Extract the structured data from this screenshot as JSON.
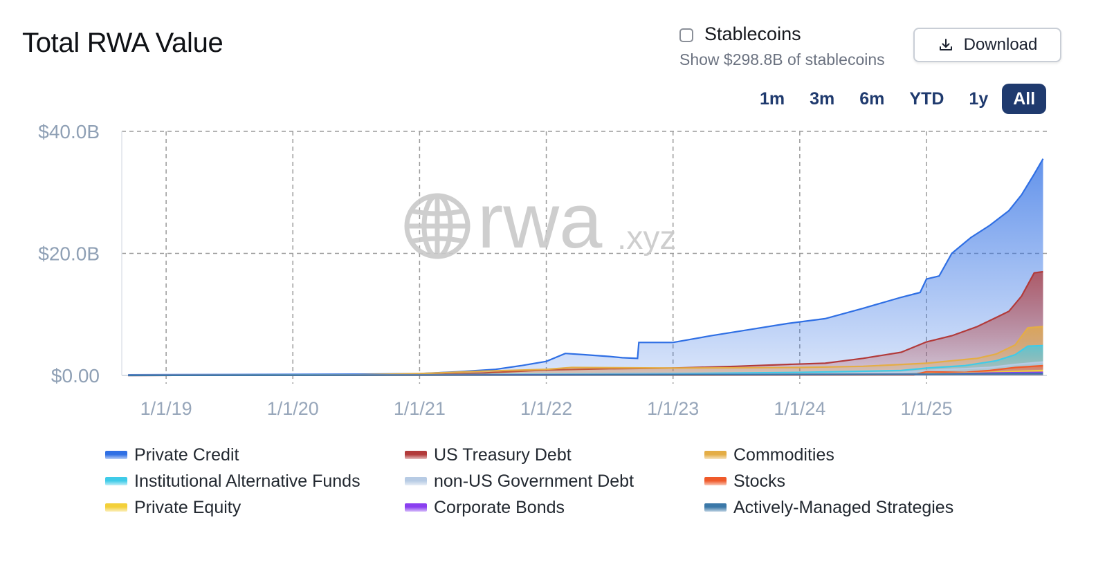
{
  "header": {
    "title": "Total RWA Value",
    "stablecoins_label": "Stablecoins",
    "stablecoins_sub": "Show $298.8B of stablecoins",
    "stablecoins_checked": false,
    "download_label": "Download"
  },
  "ranges": [
    {
      "label": "1m",
      "active": false
    },
    {
      "label": "3m",
      "active": false
    },
    {
      "label": "6m",
      "active": false
    },
    {
      "label": "YTD",
      "active": false
    },
    {
      "label": "1y",
      "active": false
    },
    {
      "label": "All",
      "active": true
    }
  ],
  "watermark": {
    "main": "rwa",
    "suffix": ".xyz",
    "icon": "globe-icon"
  },
  "chart_data": {
    "type": "area",
    "stacked": false,
    "ylim": [
      0,
      40
    ],
    "y_ticks": [
      {
        "value": 0,
        "label": "$0.00"
      },
      {
        "value": 20,
        "label": "$20.0B"
      },
      {
        "value": 40,
        "label": "$40.0B"
      }
    ],
    "x_ticks": [
      {
        "value": 2019.0,
        "label": "1/1/19"
      },
      {
        "value": 2020.0,
        "label": "1/1/20"
      },
      {
        "value": 2021.0,
        "label": "1/1/21"
      },
      {
        "value": 2022.0,
        "label": "1/1/22"
      },
      {
        "value": 2023.0,
        "label": "1/1/23"
      },
      {
        "value": 2024.0,
        "label": "1/1/24"
      },
      {
        "value": 2025.0,
        "label": "1/1/25"
      }
    ],
    "xlim": [
      2018.65,
      2025.95
    ],
    "grid": true,
    "legend_position": "bottom",
    "series": [
      {
        "name": "Private Credit",
        "color": "#2f6fe4",
        "x": [
          2018.7,
          2019.5,
          2020.5,
          2021.0,
          2021.3,
          2021.6,
          2021.8,
          2022.0,
          2022.15,
          2022.3,
          2022.5,
          2022.6,
          2022.72,
          2022.73,
          2023.0,
          2023.3,
          2023.6,
          2023.9,
          2024.2,
          2024.5,
          2024.8,
          2024.95,
          2025.0,
          2025.1,
          2025.2,
          2025.35,
          2025.5,
          2025.65,
          2025.75,
          2025.85,
          2025.92
        ],
        "values": [
          0.1,
          0.15,
          0.2,
          0.3,
          0.6,
          1.0,
          1.6,
          2.3,
          3.6,
          3.4,
          3.1,
          2.9,
          2.8,
          5.4,
          5.4,
          6.5,
          7.5,
          8.5,
          9.3,
          11.0,
          12.8,
          13.6,
          15.8,
          16.3,
          20.0,
          22.6,
          24.6,
          27.0,
          29.6,
          33.0,
          35.5
        ]
      },
      {
        "name": "US Treasury Debt",
        "color": "#b23a3a",
        "x": [
          2018.7,
          2020.5,
          2021.0,
          2021.5,
          2022.0,
          2022.5,
          2023.0,
          2023.5,
          2023.9,
          2024.2,
          2024.5,
          2024.8,
          2025.0,
          2025.2,
          2025.4,
          2025.55,
          2025.65,
          2025.75,
          2025.85,
          2025.92
        ],
        "values": [
          0.02,
          0.05,
          0.1,
          0.4,
          0.9,
          1.1,
          1.2,
          1.5,
          1.8,
          2.0,
          2.8,
          3.8,
          5.5,
          6.5,
          8.0,
          9.5,
          10.5,
          13.0,
          16.8,
          17.0
        ]
      },
      {
        "name": "Commodities",
        "color": "#e4ad45",
        "x": [
          2018.7,
          2020.5,
          2021.0,
          2021.5,
          2022.0,
          2022.2,
          2023.0,
          2024.0,
          2024.5,
          2025.0,
          2025.2,
          2025.4,
          2025.55,
          2025.7,
          2025.8,
          2025.92
        ],
        "values": [
          0.05,
          0.1,
          0.3,
          0.7,
          1.0,
          1.3,
          1.2,
          1.3,
          1.5,
          2.0,
          2.4,
          2.8,
          3.5,
          5.0,
          7.8,
          8.0
        ]
      },
      {
        "name": "Institutional Alternative Funds",
        "color": "#3fcbe8",
        "x": [
          2018.7,
          2021.0,
          2022.0,
          2023.0,
          2024.0,
          2024.8,
          2025.0,
          2025.3,
          2025.55,
          2025.7,
          2025.8,
          2025.92
        ],
        "values": [
          0.05,
          0.1,
          0.2,
          0.3,
          0.5,
          0.8,
          1.2,
          1.6,
          2.4,
          3.4,
          4.8,
          4.9
        ]
      },
      {
        "name": "non-US Government Debt",
        "color": "#b7cbe4",
        "x": [
          2018.7,
          2024.0,
          2024.8,
          2025.0,
          2025.5,
          2025.7,
          2025.92
        ],
        "values": [
          0.0,
          0.2,
          0.5,
          0.8,
          1.3,
          1.8,
          2.2
        ]
      },
      {
        "name": "Stocks",
        "color": "#ef5a2a",
        "x": [
          2018.7,
          2024.9,
          2025.0,
          2025.3,
          2025.5,
          2025.7,
          2025.92
        ],
        "values": [
          0.0,
          0.1,
          0.6,
          0.5,
          0.8,
          1.3,
          1.6
        ]
      },
      {
        "name": "Private Equity",
        "color": "#f3d03a",
        "x": [
          2018.7,
          2024.9,
          2025.5,
          2025.92
        ],
        "values": [
          0.0,
          0.2,
          0.5,
          0.8
        ]
      },
      {
        "name": "Corporate Bonds",
        "color": "#8a3ff0",
        "x": [
          2018.7,
          2025.0,
          2025.5,
          2025.92
        ],
        "values": [
          0.0,
          0.2,
          0.4,
          0.5
        ]
      },
      {
        "name": "Actively-Managed Strategies",
        "color": "#3b78a8",
        "x": [
          2018.7,
          2022.7,
          2025.0,
          2025.92
        ],
        "values": [
          0.0,
          0.1,
          0.2,
          0.3
        ]
      }
    ]
  },
  "legend": [
    {
      "label": "Private Credit",
      "color": "#2f6fe4"
    },
    {
      "label": "US Treasury Debt",
      "color": "#b23a3a"
    },
    {
      "label": "Commodities",
      "color": "#e4ad45"
    },
    {
      "label": "Institutional Alternative Funds",
      "color": "#3fcbe8"
    },
    {
      "label": "non-US Government Debt",
      "color": "#b7cbe4"
    },
    {
      "label": "Stocks",
      "color": "#ef5a2a"
    },
    {
      "label": "Private Equity",
      "color": "#f3d03a"
    },
    {
      "label": "Corporate Bonds",
      "color": "#8a3ff0"
    },
    {
      "label": "Actively-Managed Strategies",
      "color": "#3b78a8"
    }
  ]
}
